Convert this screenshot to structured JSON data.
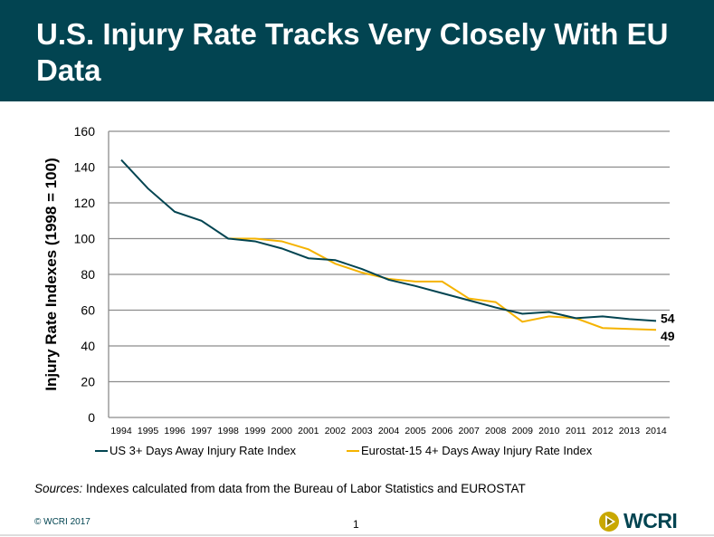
{
  "header": {
    "title": "U.S. Injury Rate Tracks Very Closely With EU Data"
  },
  "chart_data": {
    "type": "line",
    "title": "",
    "xlabel": "",
    "ylabel": "Injury Rate Indexes (1998 = 100)",
    "ylim": [
      0,
      160
    ],
    "yticks": [
      0,
      20,
      40,
      60,
      80,
      100,
      120,
      140,
      160
    ],
    "grid": true,
    "legend_position": "bottom",
    "x": [
      1994,
      1995,
      1996,
      1997,
      1998,
      1999,
      2000,
      2001,
      2002,
      2003,
      2004,
      2005,
      2006,
      2007,
      2008,
      2009,
      2010,
      2011,
      2012,
      2013,
      2014
    ],
    "series": [
      {
        "name": "US 3+ Days Away Injury Rate Index",
        "color": "#024451",
        "values": [
          144,
          128,
          115,
          110,
          100,
          98.5,
          94.5,
          89,
          88,
          83,
          77,
          73.5,
          69.5,
          65.5,
          61.5,
          58,
          59,
          55.5,
          56.5,
          55,
          54
        ],
        "end_label": "54"
      },
      {
        "name": "Eurostat-15 4+ Days Away Injury Rate Index",
        "color": "#F5B300",
        "values": [
          null,
          null,
          null,
          null,
          100,
          100,
          98.5,
          94,
          86,
          81,
          77.5,
          76,
          76,
          66.5,
          64.5,
          53.5,
          56.5,
          55.5,
          50,
          49.5,
          49
        ],
        "end_label": "49"
      }
    ]
  },
  "footer": {
    "sources_label": "Sources:",
    "sources_text": " Indexes calculated from data from the Bureau of Labor Statistics and EUROSTAT",
    "copyright": "© WCRI 2017",
    "page_number": "1",
    "logo_text": "WCRI"
  }
}
